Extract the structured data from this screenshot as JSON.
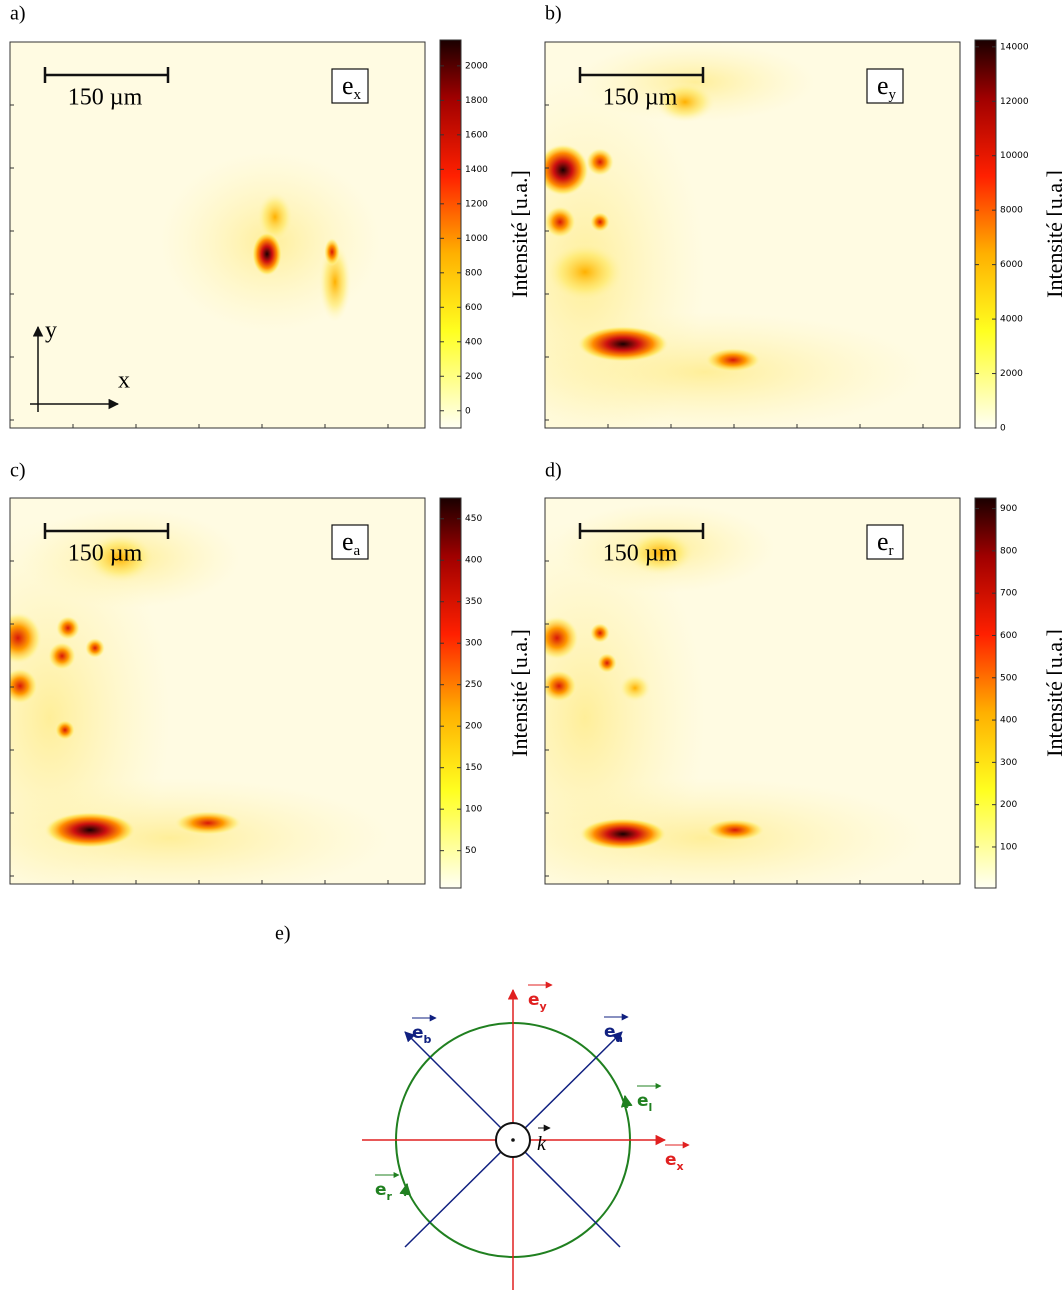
{
  "chart_data": [
    {
      "type": "heatmap",
      "panel": "a)",
      "field": "e",
      "field_sub": "x",
      "scale_bar": "150 µm",
      "axis_x": "x",
      "axis_y": "y",
      "colorbar_label": "Intensité [u.a.]",
      "clim": [
        -100,
        2150
      ],
      "cticks": [
        0,
        200,
        400,
        600,
        800,
        1000,
        1200,
        1400,
        1600,
        1800,
        2000
      ]
    },
    {
      "type": "heatmap",
      "panel": "b)",
      "field": "e",
      "field_sub": "y",
      "scale_bar": "150 µm",
      "colorbar_label": "Intensité [u.a.]",
      "clim": [
        0,
        14250
      ],
      "cticks": [
        0,
        2000,
        4000,
        6000,
        8000,
        10000,
        12000,
        14000
      ]
    },
    {
      "type": "heatmap",
      "panel": "c)",
      "field": "e",
      "field_sub": "a",
      "scale_bar": "150 µm",
      "colorbar_label": "Intensité [u.a.]",
      "clim": [
        5,
        475
      ],
      "cticks": [
        50,
        100,
        150,
        200,
        250,
        300,
        350,
        400,
        450
      ]
    },
    {
      "type": "heatmap",
      "panel": "d)",
      "field": "e",
      "field_sub": "r",
      "scale_bar": "150 µm",
      "colorbar_label": "Intensité [u.a.]",
      "clim": [
        3,
        925
      ],
      "cticks": [
        100,
        200,
        300,
        400,
        500,
        600,
        700,
        800,
        900
      ]
    }
  ],
  "diagram": {
    "panel": "e)",
    "k": "k",
    "labels": [
      {
        "base": "e",
        "sub": "y"
      },
      {
        "base": "e",
        "sub": "a"
      },
      {
        "base": "e",
        "sub": "b"
      },
      {
        "base": "e",
        "sub": "l"
      },
      {
        "base": "e",
        "sub": "x"
      },
      {
        "base": "e",
        "sub": "r"
      }
    ]
  }
}
